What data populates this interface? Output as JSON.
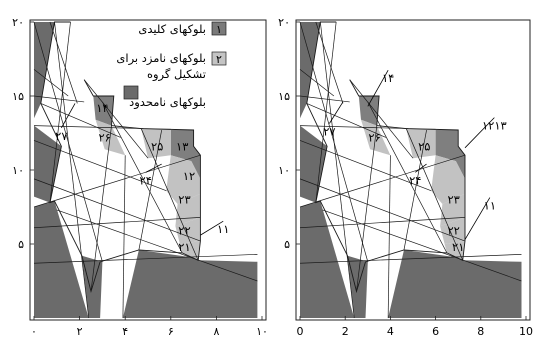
{
  "panels": [
    {
      "id": "left",
      "x_ticks": [
        "۰",
        "۲",
        "۴",
        "۶",
        "۸",
        "۱۰"
      ],
      "y_ticks": [
        "۵",
        "۱۰",
        "۱۵",
        "۲۰"
      ],
      "block_labels": [
        {
          "text": "۱۴",
          "x": 3.0,
          "y": 14.2
        },
        {
          "text": "۲۶",
          "x": 3.1,
          "y": 12.2
        },
        {
          "text": "۲۵",
          "x": 5.4,
          "y": 11.6
        },
        {
          "text": "۱۳",
          "x": 6.5,
          "y": 11.6
        },
        {
          "text": "۱۲",
          "x": 6.8,
          "y": 9.6
        },
        {
          "text": "۲۳",
          "x": 6.6,
          "y": 8.0
        },
        {
          "text": "۲۲",
          "x": 6.6,
          "y": 5.9
        },
        {
          "text": "۲۱",
          "x": 6.6,
          "y": 4.8
        }
      ],
      "callouts": [
        {
          "text": "۲۷",
          "label_x": 1.2,
          "label_y": 12.3,
          "to_x": 1.8,
          "to_y": 14.5
        },
        {
          "text": "۲۴",
          "label_x": 4.9,
          "label_y": 9.3,
          "to_x": 5.6,
          "to_y": 10.4
        },
        {
          "text": "۱۱",
          "label_x": 8.3,
          "label_y": 6.0,
          "to_x": 7.3,
          "to_y": 5.6
        }
      ]
    },
    {
      "id": "right",
      "x_ticks": [
        "0",
        "2",
        "4",
        "6",
        "8",
        "10"
      ],
      "y_ticks": [
        "۵",
        "۱۰",
        "۱۵",
        "۲۰"
      ],
      "block_labels": [
        {
          "text": "۲۶",
          "x": 3.3,
          "y": 12.2
        },
        {
          "text": "۲۵",
          "x": 5.5,
          "y": 11.6
        },
        {
          "text": "۲۳",
          "x": 6.8,
          "y": 8.0
        },
        {
          "text": "۲۲",
          "x": 6.8,
          "y": 5.9
        },
        {
          "text": "۲۱",
          "x": 7.0,
          "y": 4.8
        }
      ],
      "callouts": [
        {
          "text": "۱۴",
          "label_x": 3.9,
          "label_y": 16.2,
          "to_x": 3.0,
          "to_y": 14.3
        },
        {
          "text": "۲۷",
          "label_x": 1.3,
          "label_y": 12.6,
          "to_x": 1.9,
          "to_y": 14.6
        },
        {
          "text": "۲۴",
          "label_x": 5.1,
          "label_y": 9.3,
          "to_x": 5.6,
          "to_y": 10.4
        },
        {
          "text": "۱۲۱۳",
          "label_x": 8.6,
          "label_y": 13.0,
          "to_x": 7.3,
          "to_y": 11.5
        },
        {
          "text": "۱۱",
          "label_x": 8.4,
          "label_y": 7.6,
          "to_x": 7.3,
          "to_y": 5.3
        }
      ]
    }
  ],
  "legend": {
    "items": [
      {
        "swatch": "۱",
        "label": "بلوکهای کلیدی",
        "color": "#7a7a7a"
      },
      {
        "swatch": "۲",
        "label": "بلوکهای نامزد برای تشکیل گروه",
        "color": "#c4c4c4"
      },
      {
        "swatch": "",
        "label": "بلوکهای نامحدود",
        "color": "#6b6b6b"
      }
    ]
  },
  "colors": {
    "unbounded": "#6b6b6b",
    "key": "#7f7f7f",
    "candidate": "#c2c2c2",
    "background": "#ffffff",
    "line": "#1a1a1a"
  }
}
